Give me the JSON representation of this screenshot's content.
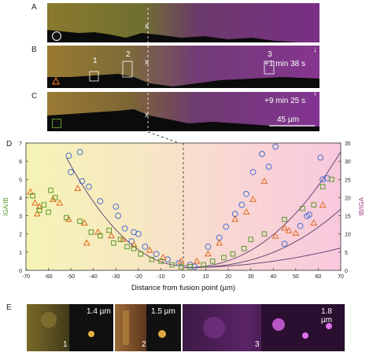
{
  "panels": {
    "a_label": "A",
    "b_label": "B",
    "c_label": "C",
    "d_label": "D",
    "e_label": "E",
    "b_time": "+1 min 38 s",
    "c_time": "+9 min 25 s",
    "scale_bar": "45 µm",
    "fusion_mark": "x",
    "roi_1": "1",
    "roi_2": "2",
    "roi_3": "3"
  },
  "legend_markers": {
    "a": "circle",
    "b": "triangle",
    "c": "square"
  },
  "insets": [
    {
      "num": "1",
      "scale": "1.4 µm"
    },
    {
      "num": "2",
      "scale": "1.5 µm"
    },
    {
      "num": "3",
      "scale": "1.8 µm"
    }
  ],
  "colors": {
    "circle": "#4a6fd0",
    "triangle": "#e06a1e",
    "square": "#5a9a2a",
    "fit": "#5b3d6e"
  },
  "chart_data": {
    "type": "scatter",
    "xlabel": "Distance from fusion point (µm)",
    "ylabel_left": "IGA/IB",
    "ylabel_right": "IB/IGA",
    "xlim": [
      -70,
      70
    ],
    "ylim_left": [
      0,
      7
    ],
    "ylim_right": [
      0,
      35
    ],
    "xticks": [
      -70,
      -60,
      -50,
      -40,
      -30,
      -20,
      -10,
      0,
      10,
      20,
      30,
      40,
      50,
      60,
      70
    ],
    "yticks_left": [
      0,
      1,
      2,
      3,
      4,
      5,
      6,
      7
    ],
    "yticks_right": [
      0,
      5,
      10,
      15,
      20,
      25,
      30,
      35
    ],
    "series": [
      {
        "marker": "circle",
        "axis": "mixed",
        "points": [
          [
            -51,
            6.3
          ],
          [
            -46,
            6.5
          ],
          [
            -50,
            5.4
          ],
          [
            -45,
            4.9
          ],
          [
            -42,
            4.6
          ],
          [
            -37,
            3.8
          ],
          [
            -30,
            3.5
          ],
          [
            -29,
            3.0
          ],
          [
            -26,
            2.3
          ],
          [
            -22,
            2.1
          ],
          [
            -20,
            2.0
          ],
          [
            -23,
            1.6
          ],
          [
            -17,
            1.3
          ],
          [
            -12,
            0.9
          ],
          [
            -7,
            0.6
          ],
          [
            -2,
            0.4
          ],
          [
            3,
            0.3
          ],
          [
            5,
            0.2
          ],
          [
            11,
            1.3
          ],
          [
            16,
            1.8
          ],
          [
            19,
            2.4
          ],
          [
            23,
            3.1
          ],
          [
            26,
            3.6
          ],
          [
            28,
            4.2
          ],
          [
            31,
            5.4
          ],
          [
            35,
            6.4
          ],
          [
            38,
            5.7
          ],
          [
            41,
            6.8
          ],
          [
            45,
            7.3
          ],
          [
            52,
            12.2
          ],
          [
            55,
            14.9
          ],
          [
            56,
            15.3
          ],
          [
            61,
            31.0
          ],
          [
            62,
            25.0
          ],
          [
            64,
            25.3
          ]
        ]
      },
      {
        "marker": "triangle",
        "axis": "mixed",
        "points": [
          [
            -68,
            4.3
          ],
          [
            -66,
            3.7
          ],
          [
            -65,
            3.1
          ],
          [
            -64,
            3.5
          ],
          [
            -58,
            3.9
          ],
          [
            -55,
            3.7
          ],
          [
            -51,
            2.8
          ],
          [
            -47,
            4.5
          ],
          [
            -44,
            2.6
          ],
          [
            -43,
            1.5
          ],
          [
            -38,
            2.1
          ],
          [
            -32,
            1.9
          ],
          [
            -27,
            1.7
          ],
          [
            -22,
            1.4
          ],
          [
            -15,
            1.1
          ],
          [
            -9,
            0.7
          ],
          [
            -1,
            0.5
          ],
          [
            6,
            0.5
          ],
          [
            11,
            0.9
          ],
          [
            16,
            1.5
          ],
          [
            23,
            2.8
          ],
          [
            28,
            3.2
          ],
          [
            31,
            3.9
          ],
          [
            36,
            4.9
          ],
          [
            41,
            9.4
          ],
          [
            45,
            11.6
          ],
          [
            47,
            10.9
          ],
          [
            50,
            10.2
          ],
          [
            58,
            13.0
          ],
          [
            62,
            17.9
          ]
        ]
      },
      {
        "marker": "square",
        "axis": "mixed",
        "points": [
          [
            -67,
            4.1
          ],
          [
            -64,
            3.3
          ],
          [
            -62,
            3.6
          ],
          [
            -60,
            3.2
          ],
          [
            -59,
            4.4
          ],
          [
            -57,
            4.0
          ],
          [
            -52,
            2.9
          ],
          [
            -46,
            2.7
          ],
          [
            -41,
            2.1
          ],
          [
            -37,
            1.9
          ],
          [
            -33,
            2.2
          ],
          [
            -31,
            1.5
          ],
          [
            -28,
            1.7
          ],
          [
            -25,
            1.3
          ],
          [
            -22,
            1.2
          ],
          [
            -19,
            0.9
          ],
          [
            -14,
            0.6
          ],
          [
            -10,
            0.5
          ],
          [
            -5,
            0.3
          ],
          [
            -1,
            0.2
          ],
          [
            3,
            0.2
          ],
          [
            9,
            0.3
          ],
          [
            13,
            0.5
          ],
          [
            18,
            0.7
          ],
          [
            22,
            0.9
          ],
          [
            27,
            1.2
          ],
          [
            30,
            1.7
          ],
          [
            36,
            2.0
          ],
          [
            45,
            2.8
          ],
          [
            53,
            3.4
          ],
          [
            58,
            3.6
          ],
          [
            62,
            4.6
          ],
          [
            66,
            5.0
          ]
        ]
      }
    ],
    "fits": [
      {
        "axis": "left",
        "note": "left parabola"
      },
      {
        "axis": "right",
        "note": "right curves x3"
      }
    ]
  }
}
